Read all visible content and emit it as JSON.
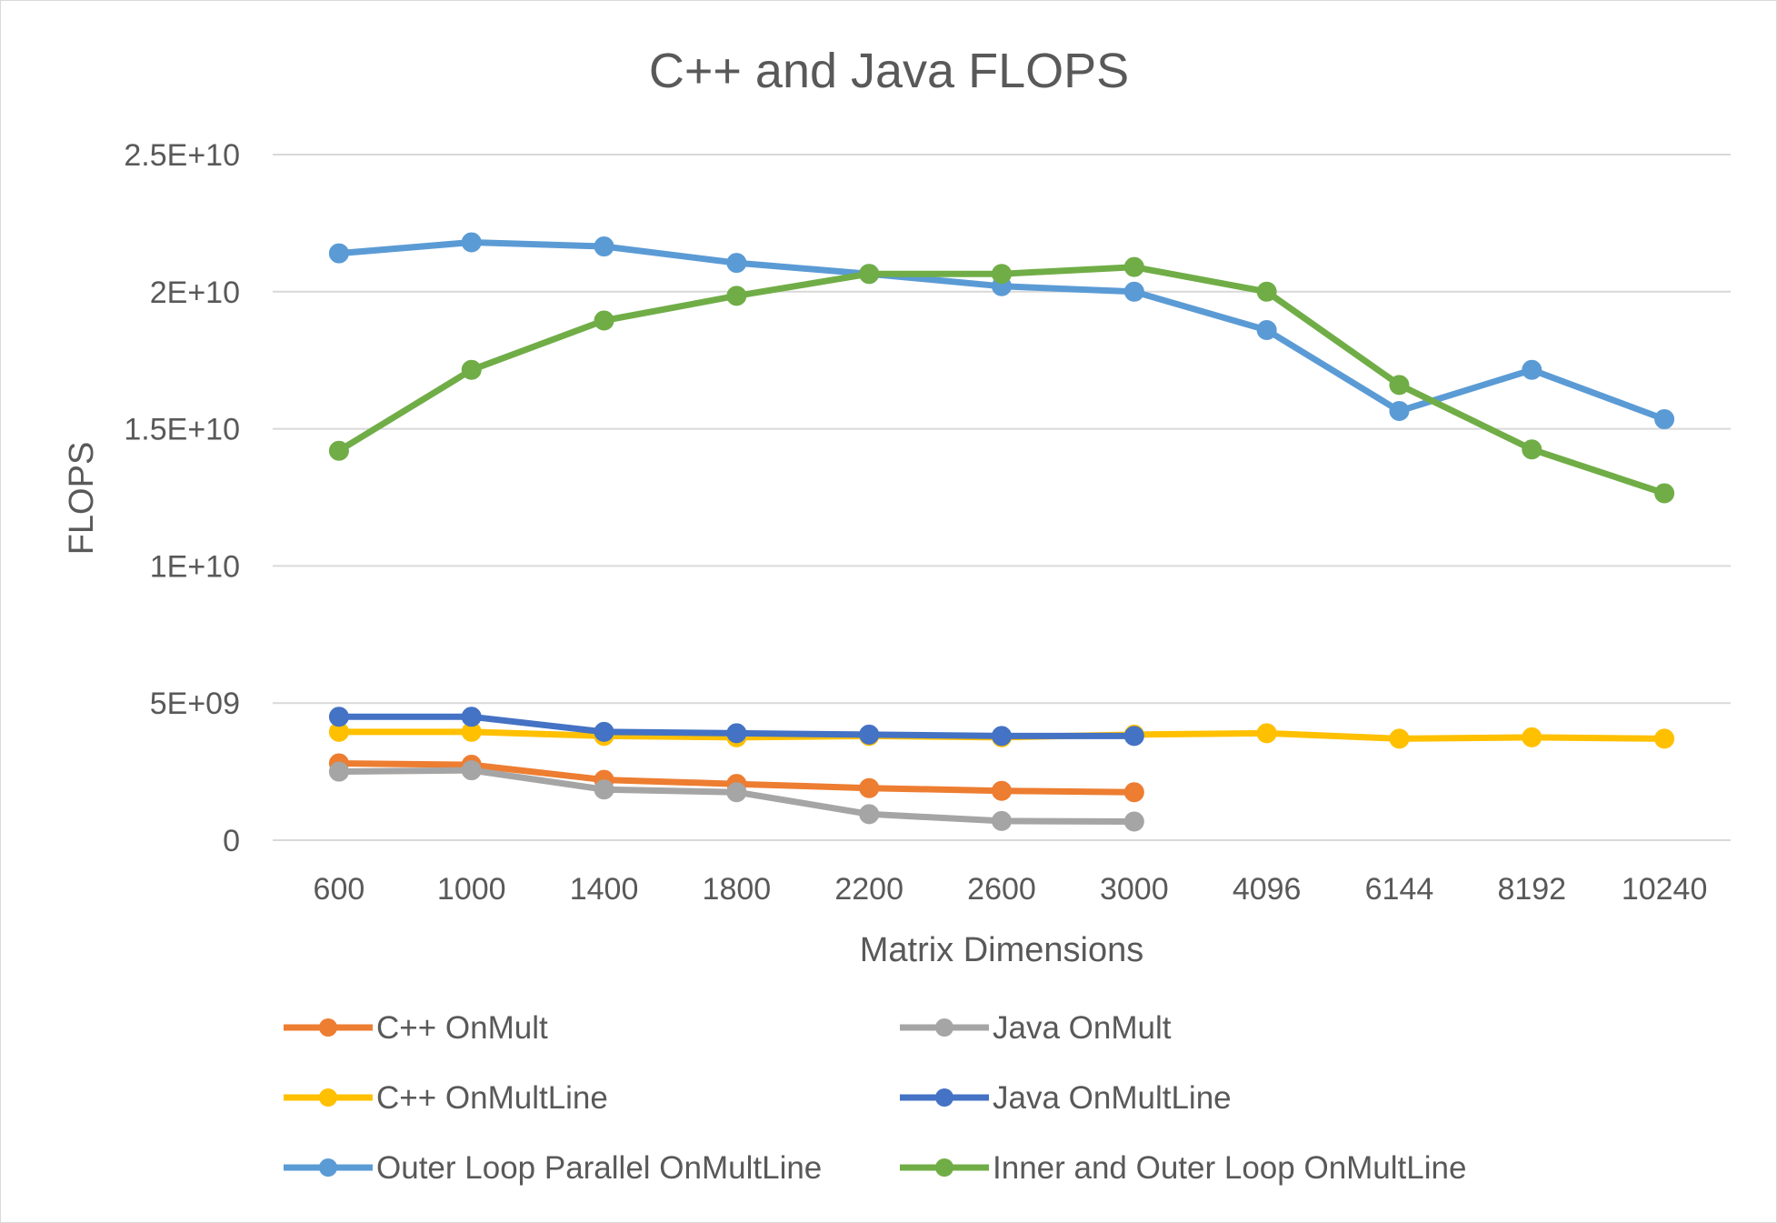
{
  "chart_data": {
    "type": "line",
    "title": "C++ and Java FLOPS",
    "xlabel": "Matrix Dimensions",
    "ylabel": "FLOPS",
    "categories": [
      "600",
      "1000",
      "1400",
      "1800",
      "2200",
      "2600",
      "3000",
      "4096",
      "6144",
      "8192",
      "10240"
    ],
    "y_ticks": [
      "0",
      "5E+09",
      "1E+10",
      "1.5E+10",
      "2E+10",
      "2.5E+10"
    ],
    "ylim": [
      0,
      25000000000
    ],
    "grid": true,
    "legend_position": "bottom",
    "series": [
      {
        "name": "C++ OnMult",
        "color": "#ED7D31",
        "values": [
          2800000000,
          2750000000,
          2200000000,
          2050000000,
          1900000000,
          1800000000,
          1750000000,
          null,
          null,
          null,
          null
        ]
      },
      {
        "name": "Java OnMult",
        "color": "#A5A5A5",
        "values": [
          2500000000,
          2550000000,
          1850000000,
          1750000000,
          950000000,
          700000000,
          680000000,
          null,
          null,
          null,
          null
        ]
      },
      {
        "name": "C++ OnMultLine",
        "color": "#FFC000",
        "values": [
          3950000000,
          3950000000,
          3800000000,
          3750000000,
          3800000000,
          3750000000,
          3850000000,
          3900000000,
          3700000000,
          3750000000,
          3700000000
        ]
      },
      {
        "name": "Java OnMultLine",
        "color": "#4472C4",
        "values": [
          4500000000,
          4500000000,
          3950000000,
          3900000000,
          3850000000,
          3800000000,
          3800000000,
          null,
          null,
          null,
          null
        ]
      },
      {
        "name": "Outer Loop Parallel OnMultLine",
        "color": "#5B9BD5",
        "values": [
          21400000000,
          21800000000,
          21650000000,
          21050000000,
          20650000000,
          20200000000,
          20000000000,
          18600000000,
          15650000000,
          17150000000,
          15350000000
        ]
      },
      {
        "name": "Inner and Outer Loop OnMultLine",
        "color": "#70AD47",
        "values": [
          14200000000,
          17150000000,
          18950000000,
          19850000000,
          20650000000,
          20650000000,
          20900000000,
          20000000000,
          16600000000,
          14250000000,
          12650000000
        ]
      }
    ]
  }
}
